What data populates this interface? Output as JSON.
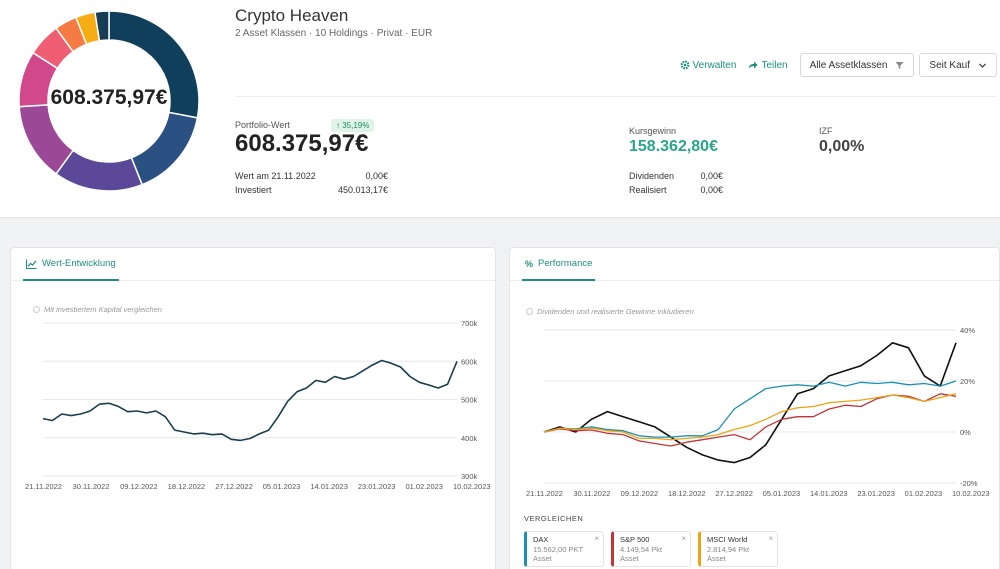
{
  "portfolio": {
    "name": "Crypto Heaven",
    "subtitle": "2 Asset Klassen · 10 Holdings · Privat · EUR",
    "donut_center": "608.375,97€",
    "donut_slices": [
      {
        "value": 28,
        "color": "#103f5c"
      },
      {
        "value": 16,
        "color": "#2b5082"
      },
      {
        "value": 16,
        "color": "#5b4898"
      },
      {
        "value": 14,
        "color": "#9b4896"
      },
      {
        "value": 10,
        "color": "#d1498a"
      },
      {
        "value": 6,
        "color": "#ef5e72"
      },
      {
        "value": 4,
        "color": "#f47b43"
      },
      {
        "value": 3.5,
        "color": "#f6ad15"
      },
      {
        "value": 2.5,
        "color": "#163d55"
      }
    ]
  },
  "actions": {
    "manage": "Verwalten",
    "share": "Teilen",
    "asset_filter": "Alle Assetklassen",
    "period": "Seit Kauf"
  },
  "stats": {
    "portfolio_label": "Portfolio-Wert",
    "portfolio_change": "35,19%",
    "portfolio_value": "608.375,97€",
    "value_on_label": "Wert am 21.11.2022",
    "value_on": "0,00€",
    "invested_label": "Investiert",
    "invested": "450.013,17€",
    "gain_label": "Kursgewinn",
    "gain": "158.362,80€",
    "dividends_label": "Dividenden",
    "dividends": "0,00€",
    "realized_label": "Realisiert",
    "realized": "0,00€",
    "izf_label": "IZF",
    "izf": "0,00%"
  },
  "value_card": {
    "tab": "Wert-Entwicklung",
    "compare_label": "Mit investiertem Kapital vergleichen"
  },
  "perf_card": {
    "tab": "Performance",
    "include_label": "Dividenden und realisierte Gewinne inkludieren",
    "compare_title": "VERGLEICHEN",
    "benchmarks": [
      {
        "name": "DAX",
        "value": "15.562,00 PKT",
        "type": "Asset",
        "color": "#1d8fb3"
      },
      {
        "name": "S&P 500",
        "value": "4.149,54 Pkt",
        "type": "Asset",
        "color": "#c0353a"
      },
      {
        "name": "MSCI World",
        "value": "2.814,94 Pkt",
        "type": "Asset",
        "color": "#eaa417"
      }
    ]
  },
  "chart_data": [
    {
      "type": "line",
      "title": "Wert-Entwicklung",
      "x_labels": [
        "21.11.2022",
        "30.11.2022",
        "09.12.2022",
        "18.12.2022",
        "27.12.2022",
        "05.01.2023",
        "14.01.2023",
        "23.01.2023",
        "01.02.2023",
        "10.02.2023"
      ],
      "y_ticks": [
        "700k",
        "600k",
        "500k",
        "400k",
        "300k"
      ],
      "ylim": [
        300000,
        700000
      ],
      "series": [
        {
          "name": "Portfolio",
          "color": "#183e4f",
          "values": [
            450000,
            445000,
            462000,
            458000,
            462000,
            470000,
            488000,
            490000,
            482000,
            468000,
            470000,
            465000,
            470000,
            455000,
            420000,
            415000,
            410000,
            412000,
            408000,
            410000,
            396000,
            393000,
            398000,
            410000,
            420000,
            455000,
            495000,
            520000,
            530000,
            550000,
            545000,
            560000,
            553000,
            560000,
            575000,
            590000,
            602000,
            595000,
            585000,
            560000,
            545000,
            538000,
            530000,
            540000,
            600000
          ]
        }
      ]
    },
    {
      "type": "line",
      "title": "Performance",
      "x_labels": [
        "21.11.2022",
        "30.11.2022",
        "09.12.2022",
        "18.12.2022",
        "27.12.2022",
        "05.01.2023",
        "14.01.2023",
        "23.01.2023",
        "01.02.2023",
        "10.02.2023"
      ],
      "y_ticks": [
        "40%",
        "20%",
        "0%",
        "-20%"
      ],
      "ylim": [
        -20,
        40
      ],
      "series": [
        {
          "name": "Portfolio",
          "color": "#111111",
          "values": [
            0,
            2,
            0,
            5,
            8,
            6,
            4,
            2,
            -2,
            -6,
            -9,
            -11,
            -12,
            -10,
            -5,
            5,
            15,
            17,
            22,
            24,
            26,
            30,
            35,
            33,
            22,
            18,
            35
          ]
        },
        {
          "name": "DAX",
          "color": "#1d8fb3",
          "values": [
            0,
            1.5,
            1.2,
            2,
            1,
            0.5,
            -1.5,
            -2,
            -2,
            -1.5,
            -1.5,
            1,
            9,
            13,
            17,
            18,
            18.5,
            18,
            19.5,
            18,
            19.5,
            19,
            19.5,
            18.5,
            19,
            18,
            20
          ]
        },
        {
          "name": "S&P 500",
          "color": "#c0353a",
          "values": [
            0,
            1.2,
            0.5,
            0.8,
            -0.5,
            -1,
            -3.5,
            -4.5,
            -5.5,
            -4,
            -3,
            -2,
            -1,
            -3,
            2,
            5,
            6,
            6,
            9,
            10.5,
            10,
            13,
            14.5,
            14,
            12,
            15,
            14
          ]
        },
        {
          "name": "MSCI World",
          "color": "#eaa417",
          "values": [
            0,
            1.5,
            1,
            1.5,
            0.5,
            0,
            -2.5,
            -2.5,
            -3,
            -2.5,
            -2,
            -1,
            1,
            2.5,
            5,
            8,
            9.5,
            10,
            11.5,
            12,
            12.5,
            13.5,
            14.5,
            13.5,
            12,
            13.5,
            15
          ]
        }
      ]
    }
  ]
}
